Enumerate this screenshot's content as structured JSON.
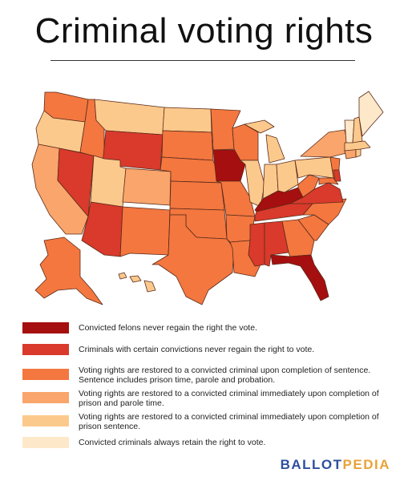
{
  "title": "Criminal voting rights",
  "categories": [
    {
      "key": "never",
      "label": "Convicted felons never regain the right the vote.",
      "color": "#a50f0f"
    },
    {
      "key": "certain",
      "label": "Criminals with certain convictions never regain the right to vote.",
      "color": "#d93a2b"
    },
    {
      "key": "completion",
      "label": "Voting rights are restored to a convicted criminal upon completion of sentence. Sentence includes prison time, parole and probation.",
      "color": "#f3773f"
    },
    {
      "key": "prison_parole",
      "label": "Voting rights are restored to a convicted criminal immediately upon completion of prison and parole time.",
      "color": "#f9a56b"
    },
    {
      "key": "prison",
      "label": "Voting rights are restored to a convicted criminal immediately upon completion of prison sentence.",
      "color": "#fcc98c"
    },
    {
      "key": "always",
      "label": "Convicted criminals always retain the right to vote.",
      "color": "#fde8ca"
    }
  ],
  "states": {
    "never": [
      "Iowa",
      "Kentucky",
      "Florida"
    ],
    "certain": [
      "Nevada",
      "Wyoming",
      "Arizona",
      "Mississippi",
      "Alabama",
      "Tennessee",
      "Virginia",
      "Delaware"
    ],
    "completion": [
      "Washington",
      "Idaho",
      "Minnesota",
      "Wisconsin",
      "Nebraska",
      "Kansas",
      "South Dakota",
      "Oklahoma",
      "Texas",
      "New Mexico",
      "Arkansas",
      "Louisiana",
      "Missouri",
      "Georgia",
      "South Carolina",
      "North Carolina",
      "West Virginia",
      "Alaska",
      "New Jersey",
      "Maryland"
    ],
    "prison_parole": [
      "California",
      "Colorado",
      "New York",
      "Connecticut"
    ],
    "prison": [
      "Oregon",
      "Montana",
      "North Dakota",
      "Utah",
      "Illinois",
      "Indiana",
      "Ohio",
      "Michigan",
      "Pennsylvania",
      "Hawaii",
      "New Hampshire",
      "Massachusetts",
      "Rhode Island"
    ],
    "always": [
      "Maine",
      "Vermont"
    ]
  },
  "brand": {
    "part1": "BALLOT",
    "part2": "PEDIA"
  }
}
